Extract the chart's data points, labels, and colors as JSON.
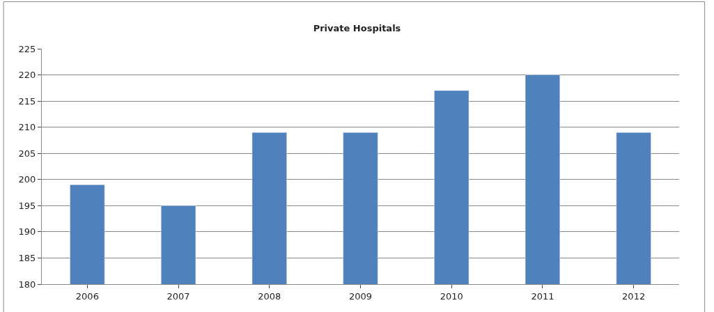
{
  "chart_data": {
    "type": "bar",
    "title": "Private Hospitals",
    "categories": [
      "2006",
      "2007",
      "2008",
      "2009",
      "2010",
      "2011",
      "2012"
    ],
    "values": [
      199,
      195,
      209,
      209,
      217,
      220,
      209
    ],
    "color": "#4f81bd",
    "ylim": [
      180,
      225
    ],
    "yticks": [
      180,
      185,
      190,
      195,
      200,
      205,
      210,
      215,
      220,
      225
    ],
    "grid": "y"
  }
}
